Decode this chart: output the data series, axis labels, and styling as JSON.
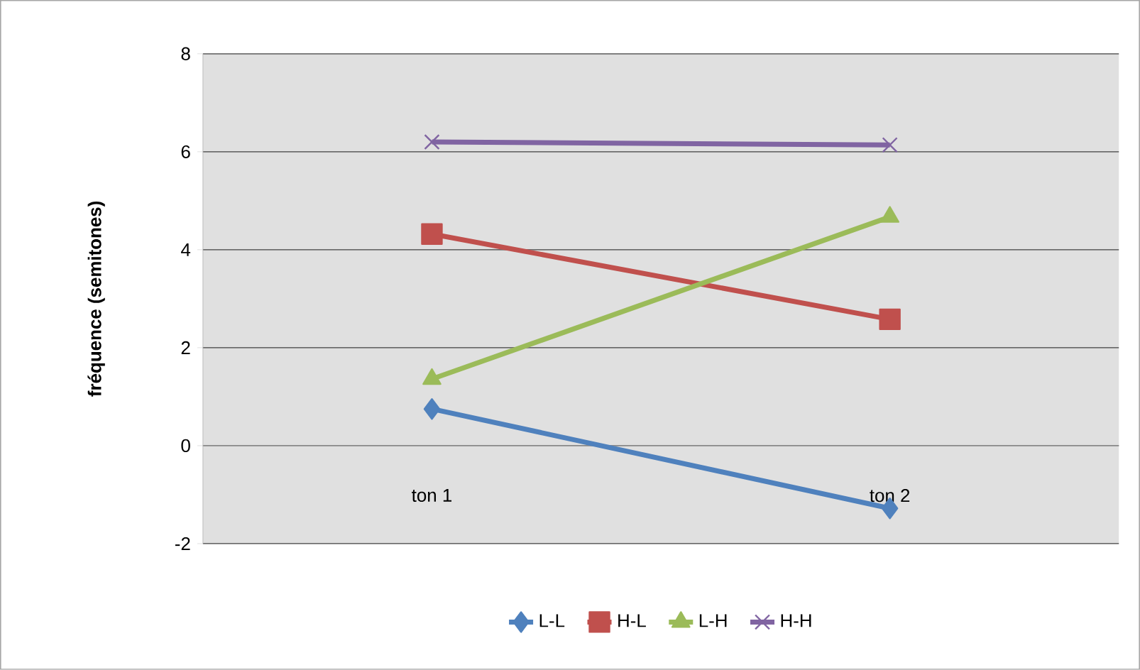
{
  "chart_data": {
    "type": "line",
    "ylabel": "fréquence (semitones)",
    "categories": [
      "ton 1",
      "ton 2"
    ],
    "series": [
      {
        "name": "L-L",
        "color": "#4f81bd",
        "marker": "diamond",
        "values": [
          0.75,
          -1.28
        ]
      },
      {
        "name": "H-L",
        "color": "#c0504d",
        "marker": "square",
        "values": [
          4.32,
          2.58
        ]
      },
      {
        "name": "L-H",
        "color": "#9bbb59",
        "marker": "triangle",
        "values": [
          1.36,
          4.67
        ]
      },
      {
        "name": "H-H",
        "color": "#8064a2",
        "marker": "cross",
        "values": [
          6.2,
          6.14
        ]
      }
    ],
    "ylim": [
      -2,
      8
    ],
    "yticks": [
      -2,
      0,
      2,
      4,
      6,
      8
    ],
    "grid": "y",
    "legend": "bottom",
    "line_style": "solid"
  }
}
